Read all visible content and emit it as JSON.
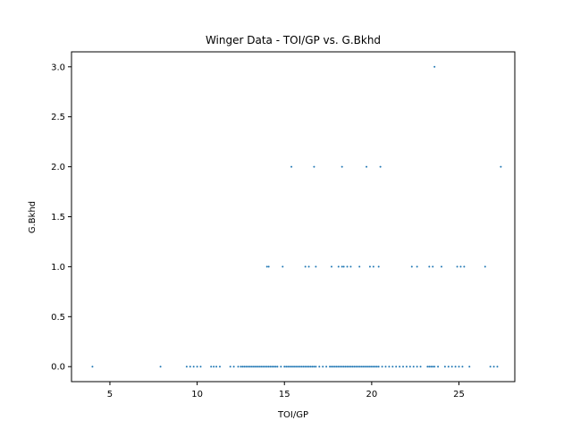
{
  "chart_data": {
    "type": "scatter",
    "title": "Winger Data - TOI/GP vs. G.Bkhd",
    "xlabel": "TOI/GP",
    "ylabel": "G.Bkhd",
    "xlim": [
      2.8,
      28.2
    ],
    "ylim": [
      -0.15,
      3.15
    ],
    "xticks": [
      5,
      10,
      15,
      20,
      25
    ],
    "xtick_labels": [
      "5",
      "10",
      "15",
      "20",
      "25"
    ],
    "yticks": [
      0,
      0.5,
      1,
      1.5,
      2,
      2.5,
      3
    ],
    "ytick_labels": [
      "0.0",
      "0.5",
      "1.0",
      "1.5",
      "2.0",
      "2.5",
      "3.0"
    ],
    "grid": false,
    "marker_color": "#1f77b4",
    "series": [
      {
        "x": [
          4.0,
          7.9,
          9.4,
          9.6,
          9.8,
          10.0,
          10.2,
          10.8,
          10.95,
          11.1,
          11.3,
          11.9,
          12.1,
          12.35,
          12.5,
          12.6,
          12.7,
          12.8,
          12.9,
          13.0,
          13.1,
          13.2,
          13.3,
          13.4,
          13.5,
          13.6,
          13.7,
          13.8,
          13.9,
          14.0,
          14.1,
          14.2,
          14.3,
          14.4,
          14.5,
          14.6,
          14.8,
          15.0,
          15.1,
          15.2,
          15.3,
          15.4,
          15.5,
          15.6,
          15.7,
          15.8,
          15.9,
          16.0,
          16.1,
          16.2,
          16.3,
          16.4,
          16.5,
          16.6,
          16.7,
          16.8,
          17.0,
          17.2,
          17.4,
          17.6,
          17.7,
          17.8,
          17.9,
          18.0,
          18.1,
          18.2,
          18.3,
          18.4,
          18.5,
          18.6,
          18.7,
          18.8,
          18.9,
          19.0,
          19.1,
          19.2,
          19.3,
          19.4,
          19.5,
          19.6,
          19.7,
          19.8,
          19.9,
          20.0,
          20.1,
          20.2,
          20.3,
          20.4,
          20.6,
          20.8,
          21.0,
          21.2,
          21.4,
          21.6,
          21.8,
          22.0,
          22.2,
          22.4,
          22.6,
          22.8,
          23.2,
          23.3,
          23.4,
          23.5,
          23.6,
          23.8,
          24.2,
          24.4,
          24.6,
          24.8,
          25.0,
          25.2,
          25.6,
          26.8,
          27.0,
          27.2,
          14.0,
          14.1,
          14.9,
          16.2,
          16.4,
          16.8,
          17.7,
          18.1,
          18.3,
          18.4,
          18.6,
          18.8,
          19.3,
          19.9,
          20.1,
          20.4,
          22.3,
          22.6,
          23.3,
          23.5,
          24.0,
          24.9,
          25.1,
          25.3,
          26.5,
          15.4,
          16.7,
          18.3,
          19.7,
          20.5,
          27.4,
          23.6
        ],
        "y": [
          0,
          0,
          0,
          0,
          0,
          0,
          0,
          0,
          0,
          0,
          0,
          0,
          0,
          0,
          0,
          0,
          0,
          0,
          0,
          0,
          0,
          0,
          0,
          0,
          0,
          0,
          0,
          0,
          0,
          0,
          0,
          0,
          0,
          0,
          0,
          0,
          0,
          0,
          0,
          0,
          0,
          0,
          0,
          0,
          0,
          0,
          0,
          0,
          0,
          0,
          0,
          0,
          0,
          0,
          0,
          0,
          0,
          0,
          0,
          0,
          0,
          0,
          0,
          0,
          0,
          0,
          0,
          0,
          0,
          0,
          0,
          0,
          0,
          0,
          0,
          0,
          0,
          0,
          0,
          0,
          0,
          0,
          0,
          0,
          0,
          0,
          0,
          0,
          0,
          0,
          0,
          0,
          0,
          0,
          0,
          0,
          0,
          0,
          0,
          0,
          0,
          0,
          0,
          0,
          0,
          0,
          0,
          0,
          0,
          0,
          0,
          0,
          0,
          0,
          0,
          0,
          1,
          1,
          1,
          1,
          1,
          1,
          1,
          1,
          1,
          1,
          1,
          1,
          1,
          1,
          1,
          1,
          1,
          1,
          1,
          1,
          1,
          1,
          1,
          1,
          1,
          2,
          2,
          2,
          2,
          2,
          2,
          3
        ]
      }
    ]
  }
}
